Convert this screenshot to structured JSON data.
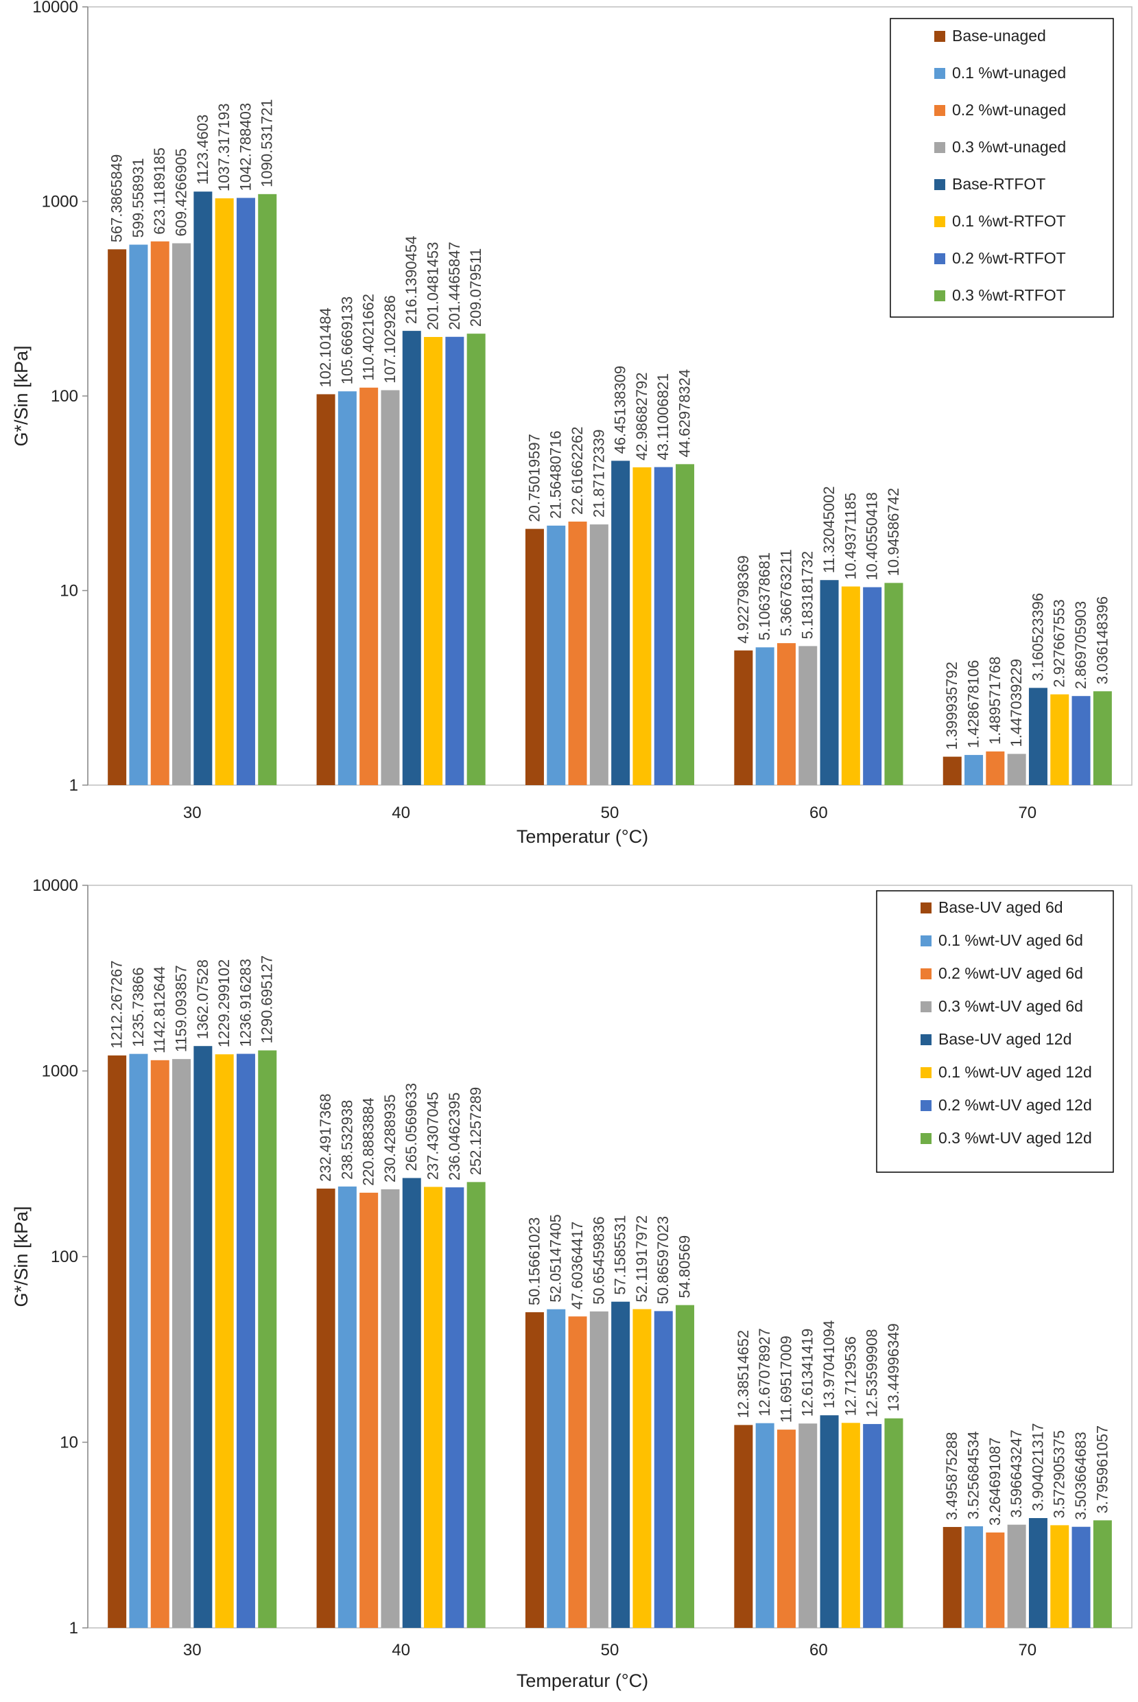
{
  "chart_data": [
    {
      "type": "bar",
      "scale": "log",
      "title": "",
      "xlabel": "Temperatur (°C)",
      "ylabel": "G*/Sin [kPa]",
      "ylim": [
        1,
        10000
      ],
      "yticks": [
        "1",
        "10",
        "100",
        "1000",
        "10000"
      ],
      "categories": [
        "30",
        "40",
        "50",
        "60",
        "70"
      ],
      "legend_position": "top-right",
      "series": [
        {
          "name": "Base-unaged",
          "color": "#9e480e",
          "values": [
            567.3865849,
            102.101484,
            20.75019597,
            4.922798369,
            1.399935792
          ],
          "labels": [
            "567.3865849",
            "102.101484",
            "20.75019597",
            "4.922798369",
            "1.399935792"
          ]
        },
        {
          "name": "0.1 %wt-unaged",
          "color": "#5b9bd5",
          "values": [
            599.558931,
            105.6669133,
            21.56480716,
            5.106378681,
            1.428678106
          ],
          "labels": [
            "599.558931",
            "105.6669133",
            "21.56480716",
            "5.106378681",
            "1.428678106"
          ]
        },
        {
          "name": "0.2 %wt-unaged",
          "color": "#ed7d31",
          "values": [
            623.1189185,
            110.4021662,
            22.61662262,
            5.366763211,
            1.489571768
          ],
          "labels": [
            "623.1189185",
            "110.4021662",
            "22.61662262",
            "5.366763211",
            "1.489571768"
          ]
        },
        {
          "name": "0.3 %wt-unaged",
          "color": "#a5a5a5",
          "values": [
            609.4266905,
            107.1029286,
            21.87172339,
            5.183181732,
            1.447039229
          ],
          "labels": [
            "609.4266905",
            "107.1029286",
            "21.87172339",
            "5.183181732",
            "1.447039229"
          ]
        },
        {
          "name": "Base-RTFOT",
          "color": "#255e91",
          "values": [
            1123.4603,
            216.1390454,
            46.45138309,
            11.32045002,
            3.160523396
          ],
          "labels": [
            "1123.4603",
            "216.1390454",
            "46.45138309",
            "11.32045002",
            "3.160523396"
          ]
        },
        {
          "name": "0.1 %wt-RTFOT",
          "color": "#ffc000",
          "values": [
            1037.317193,
            201.0481453,
            42.98682792,
            10.49371185,
            2.927667553
          ],
          "labels": [
            "1037.317193",
            "201.0481453",
            "42.98682792",
            "10.49371185",
            "2.927667553"
          ]
        },
        {
          "name": "0.2 %wt-RTFOT",
          "color": "#4472c4",
          "values": [
            1042.788403,
            201.4465847,
            43.11006821,
            10.40550418,
            2.869705903
          ],
          "labels": [
            "1042.788403",
            "201.4465847",
            "43.11006821",
            "10.40550418",
            "2.869705903"
          ]
        },
        {
          "name": "0.3 %wt-RTFOT",
          "color": "#70ad47",
          "values": [
            1090.531721,
            209.079511,
            44.62978324,
            10.94586742,
            3.036148396
          ],
          "labels": [
            "1090.531721",
            "209.079511",
            "44.62978324",
            "10.94586742",
            "3.036148396"
          ]
        }
      ]
    },
    {
      "type": "bar",
      "scale": "log",
      "title": "",
      "xlabel": "Temperatur (°C)",
      "ylabel": "G*/Sin [kPa]",
      "ylim": [
        1,
        10000
      ],
      "yticks": [
        "1",
        "10",
        "100",
        "1000",
        "10000"
      ],
      "categories": [
        "30",
        "40",
        "50",
        "60",
        "70"
      ],
      "legend_position": "top-right",
      "series": [
        {
          "name": "Base-UV aged 6d",
          "color": "#9e480e",
          "values": [
            1212.267267,
            232.4917368,
            50.15661023,
            12.38514652,
            3.495875288
          ],
          "labels": [
            "1212.267267",
            "232.4917368",
            "50.15661023",
            "12.38514652",
            "3.495875288"
          ]
        },
        {
          "name": "0.1 %wt-UV aged 6d",
          "color": "#5b9bd5",
          "values": [
            1235.73866,
            238.532938,
            52.05147405,
            12.67078927,
            3.525684534
          ],
          "labels": [
            "1235.73866",
            "238.532938",
            "52.05147405",
            "12.67078927",
            "3.525684534"
          ]
        },
        {
          "name": "0.2 %wt-UV aged 6d",
          "color": "#ed7d31",
          "values": [
            1142.812644,
            220.8883884,
            47.60364417,
            11.69517009,
            3.264691087
          ],
          "labels": [
            "1142.812644",
            "220.8883884",
            "47.60364417",
            "11.69517009",
            "3.264691087"
          ]
        },
        {
          "name": "0.3 %wt-UV aged 6d",
          "color": "#a5a5a5",
          "values": [
            1159.093857,
            230.4288935,
            50.65459836,
            12.61341419,
            3.596643247
          ],
          "labels": [
            "1159.093857",
            "230.4288935",
            "50.65459836",
            "12.61341419",
            "3.596643247"
          ]
        },
        {
          "name": "Base-UV aged 12d",
          "color": "#255e91",
          "values": [
            1362.07528,
            265.0569633,
            57.1585531,
            13.97041094,
            3.904021317
          ],
          "labels": [
            "1362.07528",
            "265.0569633",
            "57.1585531",
            "13.97041094",
            "3.904021317"
          ]
        },
        {
          "name": "0.1 %wt-UV aged 12d",
          "color": "#ffc000",
          "values": [
            1229.299102,
            237.4307045,
            52.11917972,
            12.7129536,
            3.572905375
          ],
          "labels": [
            "1229.299102",
            "237.4307045",
            "52.11917972",
            "12.7129536",
            "3.572905375"
          ]
        },
        {
          "name": "0.2 %wt-UV aged 12d",
          "color": "#4472c4",
          "values": [
            1236.916283,
            236.0462395,
            50.86597023,
            12.53599908,
            3.503664683
          ],
          "labels": [
            "1236.916283",
            "236.0462395",
            "50.86597023",
            "12.53599908",
            "3.503664683"
          ]
        },
        {
          "name": "0.3 %wt-UV aged 12d",
          "color": "#70ad47",
          "values": [
            1290.695127,
            252.1257289,
            54.80569,
            13.44996349,
            3.795961057
          ],
          "labels": [
            "1290.695127",
            "252.1257289",
            "54.80569",
            "13.44996349",
            "3.795961057"
          ]
        }
      ]
    }
  ]
}
